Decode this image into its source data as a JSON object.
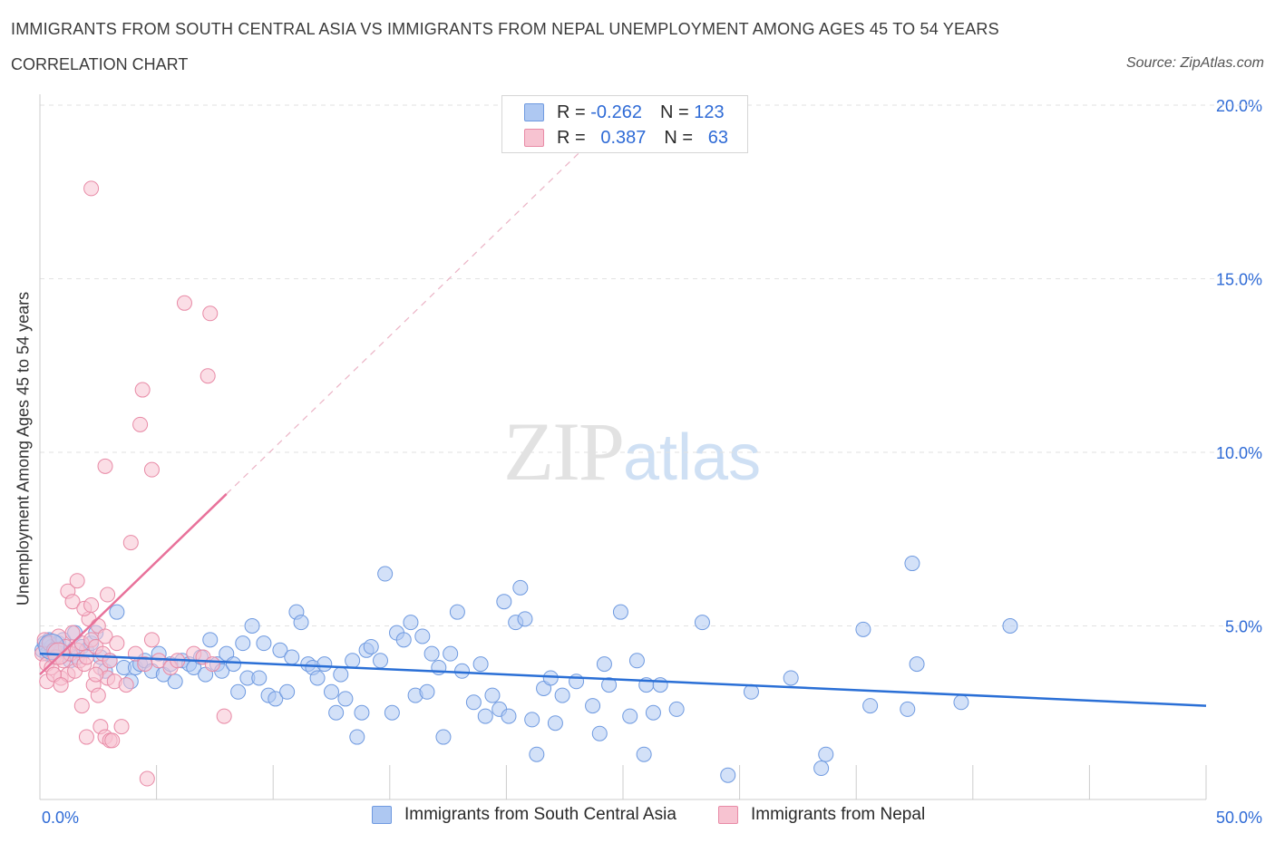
{
  "header": {
    "title": "IMMIGRANTS FROM SOUTH CENTRAL ASIA VS IMMIGRANTS FROM NEPAL UNEMPLOYMENT AMONG AGES 45 TO 54 YEARS",
    "subtitle": "CORRELATION CHART",
    "source": "Source: ZipAtlas.com"
  },
  "legend": {
    "r_label": "R =",
    "n_label": "N =",
    "series1": {
      "r": "-0.262",
      "n": "123"
    },
    "series2": {
      "r": "0.387",
      "n": "63"
    }
  },
  "watermark": {
    "zip": "ZIP",
    "atlas": "atlas"
  },
  "colors": {
    "blue": "#6f9ae0",
    "blue_fill": "#aec8f2",
    "blue_line": "#2a6fd6",
    "pink": "#e88aa6",
    "pink_fill": "#f7c3d1",
    "pink_line": "#e8719a",
    "axis_text": "#2f6bd6"
  },
  "chart_data": {
    "type": "scatter",
    "title": "IMMIGRANTS FROM SOUTH CENTRAL ASIA VS IMMIGRANTS FROM NEPAL UNEMPLOYMENT AMONG AGES 45 TO 54 YEARS",
    "xlabel": "",
    "ylabel": "Unemployment Among Ages 45 to 54 years",
    "xlim": [
      0,
      50
    ],
    "ylim": [
      0,
      20
    ],
    "x_tick_labels": [
      "0.0%",
      "50.0%"
    ],
    "y_ticks": [
      5,
      10,
      15,
      20
    ],
    "y_tick_labels": [
      "5.0%",
      "10.0%",
      "15.0%",
      "20.0%"
    ],
    "legend_position": "bottom",
    "series": [
      {
        "name": "Immigrants from South Central Asia",
        "r": -0.262,
        "n": 123,
        "trend": {
          "x": [
            0,
            50
          ],
          "y": [
            4.2,
            2.7
          ]
        },
        "points": [
          [
            0.1,
            4.3
          ],
          [
            0.2,
            4.5
          ],
          [
            0.3,
            4.2
          ],
          [
            0.4,
            4.6
          ],
          [
            0.5,
            4.4
          ],
          [
            0.6,
            4.1
          ],
          [
            0.8,
            4.5
          ],
          [
            0.9,
            4.3
          ],
          [
            1.0,
            4.6
          ],
          [
            1.2,
            4.2
          ],
          [
            1.3,
            4.0
          ],
          [
            1.5,
            4.8
          ],
          [
            1.6,
            4.1
          ],
          [
            1.8,
            4.4
          ],
          [
            2.0,
            4.3
          ],
          [
            2.2,
            4.5
          ],
          [
            2.4,
            4.8
          ],
          [
            2.6,
            4.1
          ],
          [
            2.8,
            3.7
          ],
          [
            3.0,
            4.0
          ],
          [
            3.3,
            5.4
          ],
          [
            3.6,
            3.8
          ],
          [
            3.9,
            3.4
          ],
          [
            4.1,
            3.8
          ],
          [
            4.3,
            3.9
          ],
          [
            4.5,
            4.0
          ],
          [
            4.8,
            3.7
          ],
          [
            5.1,
            4.2
          ],
          [
            5.3,
            3.6
          ],
          [
            5.6,
            3.9
          ],
          [
            5.8,
            3.4
          ],
          [
            6.1,
            4.0
          ],
          [
            6.4,
            3.9
          ],
          [
            6.6,
            3.8
          ],
          [
            6.9,
            4.1
          ],
          [
            7.1,
            3.6
          ],
          [
            7.3,
            4.6
          ],
          [
            7.6,
            3.9
          ],
          [
            7.8,
            3.7
          ],
          [
            8.0,
            4.2
          ],
          [
            8.3,
            3.9
          ],
          [
            8.5,
            3.1
          ],
          [
            8.7,
            4.5
          ],
          [
            8.9,
            3.5
          ],
          [
            9.1,
            5.0
          ],
          [
            9.4,
            3.5
          ],
          [
            9.6,
            4.5
          ],
          [
            9.8,
            3.0
          ],
          [
            10.1,
            2.9
          ],
          [
            10.3,
            4.3
          ],
          [
            10.6,
            3.1
          ],
          [
            10.8,
            4.1
          ],
          [
            11.0,
            5.4
          ],
          [
            11.2,
            5.1
          ],
          [
            11.5,
            3.9
          ],
          [
            11.7,
            3.8
          ],
          [
            11.9,
            3.5
          ],
          [
            12.2,
            3.9
          ],
          [
            12.5,
            3.1
          ],
          [
            12.7,
            2.5
          ],
          [
            12.9,
            3.6
          ],
          [
            13.1,
            2.9
          ],
          [
            13.4,
            4.0
          ],
          [
            13.6,
            1.8
          ],
          [
            13.8,
            2.5
          ],
          [
            14.0,
            4.3
          ],
          [
            14.2,
            4.4
          ],
          [
            14.8,
            6.5
          ],
          [
            14.6,
            4.0
          ],
          [
            15.1,
            2.5
          ],
          [
            15.3,
            4.8
          ],
          [
            15.6,
            4.6
          ],
          [
            15.9,
            5.1
          ],
          [
            16.1,
            3.0
          ],
          [
            16.4,
            4.7
          ],
          [
            16.6,
            3.1
          ],
          [
            16.8,
            4.2
          ],
          [
            17.1,
            3.8
          ],
          [
            17.3,
            1.8
          ],
          [
            17.6,
            4.2
          ],
          [
            17.9,
            5.4
          ],
          [
            18.1,
            3.7
          ],
          [
            18.6,
            2.8
          ],
          [
            18.9,
            3.9
          ],
          [
            19.1,
            2.4
          ],
          [
            19.4,
            3.0
          ],
          [
            19.7,
            2.6
          ],
          [
            19.9,
            5.7
          ],
          [
            20.1,
            2.4
          ],
          [
            20.4,
            5.1
          ],
          [
            20.6,
            6.1
          ],
          [
            20.8,
            5.2
          ],
          [
            21.1,
            2.3
          ],
          [
            21.3,
            1.3
          ],
          [
            21.6,
            3.2
          ],
          [
            21.9,
            3.5
          ],
          [
            22.1,
            2.2
          ],
          [
            22.4,
            3.0
          ],
          [
            23.0,
            3.4
          ],
          [
            23.7,
            2.7
          ],
          [
            24.2,
            3.9
          ],
          [
            24.0,
            1.9
          ],
          [
            24.4,
            3.3
          ],
          [
            24.9,
            5.4
          ],
          [
            25.3,
            2.4
          ],
          [
            25.6,
            4.0
          ],
          [
            25.9,
            1.3
          ],
          [
            26.3,
            2.5
          ],
          [
            26.0,
            3.3
          ],
          [
            26.6,
            3.3
          ],
          [
            27.3,
            2.6
          ],
          [
            28.4,
            5.1
          ],
          [
            29.5,
            0.7
          ],
          [
            30.5,
            3.1
          ],
          [
            32.2,
            3.5
          ],
          [
            33.5,
            0.9
          ],
          [
            33.7,
            1.3
          ],
          [
            35.3,
            4.9
          ],
          [
            35.6,
            2.7
          ],
          [
            37.4,
            6.8
          ],
          [
            37.2,
            2.6
          ],
          [
            37.6,
            3.9
          ],
          [
            39.5,
            2.8
          ],
          [
            41.6,
            5.0
          ]
        ]
      },
      {
        "name": "Immigrants from Nepal",
        "r": 0.387,
        "n": 63,
        "trend": {
          "x": [
            0,
            8
          ],
          "y": [
            3.6,
            8.8
          ]
        },
        "points": [
          [
            0.1,
            4.2
          ],
          [
            0.2,
            4.6
          ],
          [
            0.3,
            3.9
          ],
          [
            0.4,
            4.5
          ],
          [
            0.5,
            3.8
          ],
          [
            0.6,
            4.3
          ],
          [
            0.7,
            4.1
          ],
          [
            0.8,
            4.7
          ],
          [
            0.9,
            3.5
          ],
          [
            1.0,
            4.0
          ],
          [
            1.1,
            4.4
          ],
          [
            1.2,
            3.6
          ],
          [
            1.3,
            4.2
          ],
          [
            1.4,
            4.8
          ],
          [
            1.5,
            3.7
          ],
          [
            1.6,
            4.3
          ],
          [
            1.7,
            4.0
          ],
          [
            1.8,
            4.5
          ],
          [
            1.9,
            3.9
          ],
          [
            2.0,
            4.1
          ],
          [
            2.1,
            5.2
          ],
          [
            2.2,
            4.6
          ],
          [
            2.3,
            3.3
          ],
          [
            2.4,
            4.4
          ],
          [
            2.5,
            5.0
          ],
          [
            2.6,
            3.8
          ],
          [
            2.7,
            4.2
          ],
          [
            2.8,
            4.7
          ],
          [
            2.9,
            3.5
          ],
          [
            3.0,
            4.0
          ],
          [
            0.3,
            3.4
          ],
          [
            0.6,
            3.6
          ],
          [
            0.9,
            3.3
          ],
          [
            1.2,
            6.0
          ],
          [
            1.4,
            5.7
          ],
          [
            1.6,
            6.3
          ],
          [
            1.8,
            2.7
          ],
          [
            1.9,
            5.5
          ],
          [
            2.0,
            1.8
          ],
          [
            2.2,
            5.6
          ],
          [
            2.4,
            3.6
          ],
          [
            2.5,
            3.0
          ],
          [
            2.6,
            2.1
          ],
          [
            2.8,
            1.8
          ],
          [
            2.9,
            5.9
          ],
          [
            3.0,
            1.7
          ],
          [
            3.1,
            1.7
          ],
          [
            3.2,
            3.4
          ],
          [
            3.3,
            4.5
          ],
          [
            3.5,
            2.1
          ],
          [
            3.7,
            3.3
          ],
          [
            4.1,
            4.2
          ],
          [
            4.5,
            3.9
          ],
          [
            4.8,
            4.6
          ],
          [
            5.1,
            4.0
          ],
          [
            5.6,
            3.8
          ],
          [
            5.9,
            4.0
          ],
          [
            6.6,
            4.2
          ],
          [
            7.0,
            4.1
          ],
          [
            7.4,
            3.9
          ],
          [
            2.8,
            9.6
          ],
          [
            3.9,
            7.4
          ],
          [
            4.3,
            10.8
          ]
        ]
      }
    ],
    "extra_pink_points": [
      [
        2.2,
        17.6
      ],
      [
        6.2,
        14.3
      ],
      [
        7.3,
        14.0
      ],
      [
        4.4,
        11.8
      ],
      [
        7.2,
        12.2
      ],
      [
        4.8,
        9.5
      ],
      [
        4.6,
        0.6
      ],
      [
        7.9,
        2.4
      ]
    ]
  }
}
